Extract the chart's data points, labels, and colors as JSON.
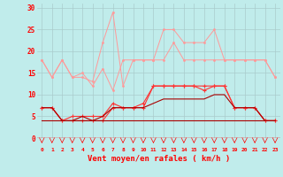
{
  "xlabel": "Vent moyen/en rafales ( km/h )",
  "background_color": "#c0eceb",
  "grid_color": "#aacccc",
  "x": [
    0,
    1,
    2,
    3,
    4,
    5,
    6,
    7,
    8,
    9,
    10,
    11,
    12,
    13,
    14,
    15,
    16,
    17,
    18,
    19,
    20,
    21,
    22,
    23
  ],
  "line1": [
    18,
    14,
    18,
    14,
    14,
    13,
    22,
    29,
    12,
    18,
    18,
    18,
    25,
    25,
    22,
    22,
    22,
    25,
    18,
    18,
    18,
    18,
    18,
    14
  ],
  "line2": [
    18,
    14,
    18,
    14,
    15,
    12,
    16,
    11,
    18,
    18,
    18,
    18,
    18,
    22,
    18,
    18,
    18,
    18,
    18,
    18,
    18,
    18,
    18,
    14
  ],
  "line3": [
    7,
    7,
    4,
    4,
    4,
    4,
    4,
    7,
    7,
    7,
    7,
    12,
    12,
    12,
    12,
    12,
    12,
    12,
    12,
    7,
    7,
    7,
    4,
    4
  ],
  "line4": [
    7,
    7,
    4,
    5,
    5,
    5,
    5,
    8,
    7,
    7,
    8,
    12,
    12,
    12,
    12,
    12,
    11,
    12,
    12,
    7,
    7,
    7,
    4,
    4
  ],
  "line5": [
    7,
    7,
    4,
    4,
    5,
    4,
    5,
    7,
    7,
    7,
    7,
    8,
    9,
    9,
    9,
    9,
    9,
    10,
    10,
    7,
    7,
    7,
    4,
    4
  ],
  "line6": [
    4,
    4,
    4,
    4,
    4,
    4,
    4,
    4,
    4,
    4,
    4,
    4,
    4,
    4,
    4,
    4,
    4,
    4,
    4,
    4,
    4,
    4,
    4,
    4
  ],
  "ylim": [
    0,
    31
  ],
  "yticks": [
    0,
    5,
    10,
    15,
    20,
    25,
    30
  ],
  "color_light": "#ff9999",
  "color_medium": "#ff3333",
  "color_dark": "#aa0000"
}
